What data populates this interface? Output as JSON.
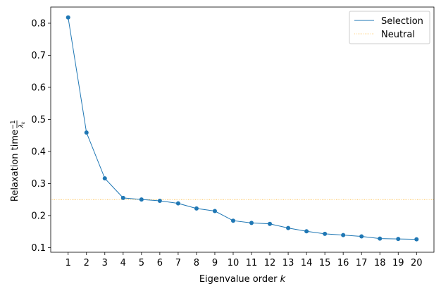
{
  "chart_data": {
    "type": "line",
    "xlabel_prefix": "Eigenvalue order ",
    "xlabel_var": "k",
    "ylabel_prefix": "Relaxation time ",
    "ylabel_frac_num": "−1",
    "ylabel_frac_den": "λ",
    "ylabel_frac_den_sub": "k",
    "xlim": [
      0.05,
      20.95
    ],
    "ylim": [
      0.0855,
      0.8505
    ],
    "x": [
      1,
      2,
      3,
      4,
      5,
      6,
      7,
      8,
      9,
      10,
      11,
      12,
      13,
      14,
      15,
      16,
      17,
      18,
      19,
      20
    ],
    "x_ticks": [
      "1",
      "2",
      "3",
      "4",
      "5",
      "6",
      "7",
      "8",
      "9",
      "10",
      "11",
      "12",
      "13",
      "14",
      "15",
      "16",
      "17",
      "18",
      "19",
      "20"
    ],
    "y_ticks": [
      0.1,
      0.2,
      0.3,
      0.4,
      0.5,
      0.6,
      0.7,
      0.8
    ],
    "y_tick_labels": [
      "0.1",
      "0.2",
      "0.3",
      "0.4",
      "0.5",
      "0.6",
      "0.7",
      "0.8"
    ],
    "series": [
      {
        "name": "Selection",
        "color": "#1f77b4",
        "style": "solid-with-markers",
        "values": [
          0.818,
          0.459,
          0.316,
          0.255,
          0.25,
          0.246,
          0.238,
          0.222,
          0.214,
          0.184,
          0.177,
          0.174,
          0.161,
          0.151,
          0.143,
          0.139,
          0.135,
          0.128,
          0.127,
          0.126
        ]
      },
      {
        "name": "Neutral",
        "color": "#ffa500",
        "style": "dotted-horizontal",
        "value": 0.25
      }
    ],
    "legend_position": "top-right",
    "grid": false
  }
}
